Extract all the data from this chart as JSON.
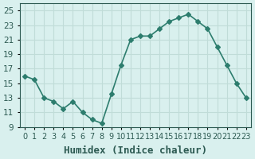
{
  "xlabel": "Humidex (Indice chaleur)",
  "x_values": [
    0,
    1,
    2,
    3,
    4,
    5,
    6,
    7,
    8,
    9,
    10,
    11,
    12,
    13,
    14,
    15,
    16,
    17,
    18,
    19,
    20,
    21,
    22,
    23
  ],
  "y_values": [
    16,
    15.5,
    13,
    12.5,
    11.5,
    12.5,
    11,
    10,
    9.5,
    13.5,
    17.5,
    21,
    21.5,
    21.5,
    22.5,
    23.5,
    24,
    24.5,
    23.5,
    22.5,
    20,
    17.5,
    15,
    13
  ],
  "line_color": "#2d7d6e",
  "marker": "D",
  "marker_size": 3,
  "bg_color": "#d9f0ee",
  "grid_color": "#c0dcd8",
  "ylim": [
    9,
    26
  ],
  "yticks": [
    9,
    11,
    13,
    15,
    17,
    19,
    21,
    23,
    25
  ],
  "xlim": [
    -0.5,
    23.5
  ],
  "xlabel_fontsize": 9,
  "tick_fontsize": 7.5,
  "line_width": 1.2,
  "tick_color": "#2d5a52"
}
